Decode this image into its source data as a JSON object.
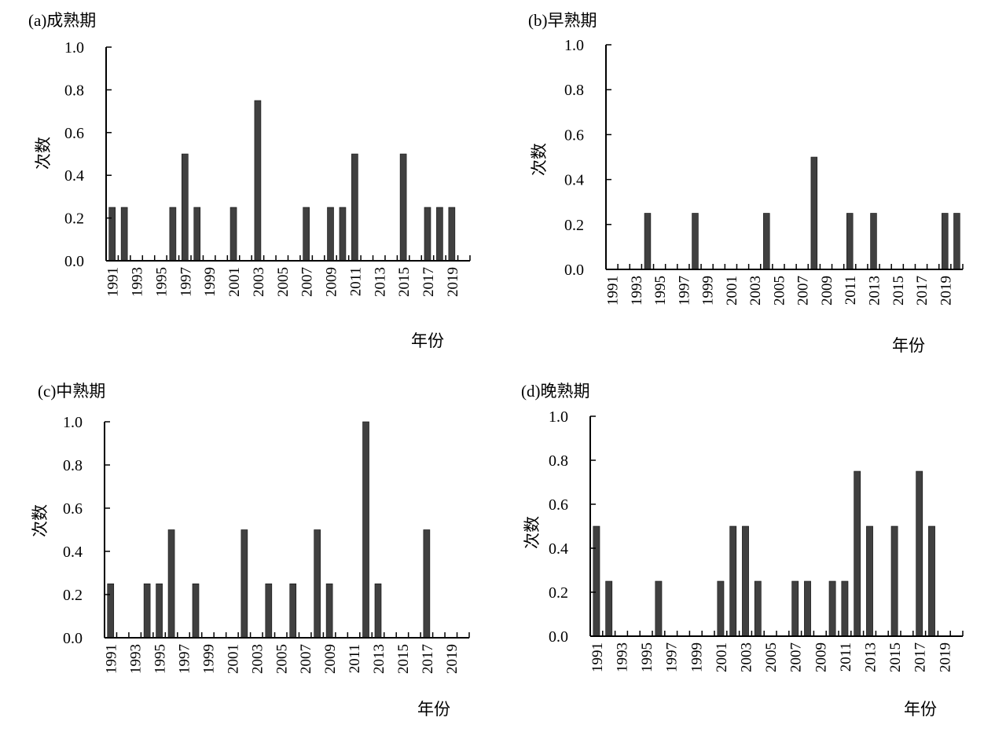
{
  "chart_data": [
    {
      "type": "bar",
      "title": "(a)成熟期",
      "xlabel": "年份",
      "ylabel": "次数",
      "ylim": [
        0,
        1.0
      ],
      "yticks": [
        "0.0",
        "0.2",
        "0.4",
        "0.6",
        "0.8",
        "1.0"
      ],
      "x": [
        1991,
        1992,
        1993,
        1994,
        1995,
        1996,
        1997,
        1998,
        1999,
        2000,
        2001,
        2002,
        2003,
        2004,
        2005,
        2006,
        2007,
        2008,
        2009,
        2010,
        2011,
        2012,
        2013,
        2014,
        2015,
        2016,
        2017,
        2018,
        2019,
        2020
      ],
      "xtick_labels": [
        "1991",
        "1993",
        "1995",
        "1997",
        "1999",
        "2001",
        "2003",
        "2005",
        "2007",
        "2009",
        "2011",
        "2013",
        "2015",
        "2017",
        "2019"
      ],
      "values": [
        0.25,
        0.25,
        0,
        0,
        0,
        0.25,
        0.5,
        0.25,
        0,
        0,
        0.25,
        0,
        0.75,
        0,
        0,
        0,
        0.25,
        0,
        0.25,
        0.25,
        0.5,
        0,
        0,
        0,
        0.5,
        0,
        0.25,
        0.25,
        0.25,
        0
      ],
      "grid": false,
      "color": "#404040"
    },
    {
      "type": "bar",
      "title": "(b)早熟期",
      "xlabel": "年份",
      "ylabel": "次数",
      "ylim": [
        0,
        1.0
      ],
      "yticks": [
        "0.0",
        "0.2",
        "0.4",
        "0.6",
        "0.8",
        "1.0"
      ],
      "x": [
        1991,
        1992,
        1993,
        1994,
        1995,
        1996,
        1997,
        1998,
        1999,
        2000,
        2001,
        2002,
        2003,
        2004,
        2005,
        2006,
        2007,
        2008,
        2009,
        2010,
        2011,
        2012,
        2013,
        2014,
        2015,
        2016,
        2017,
        2018,
        2019,
        2020
      ],
      "xtick_labels": [
        "1991",
        "1993",
        "1995",
        "1997",
        "1999",
        "2001",
        "2003",
        "2005",
        "2007",
        "2009",
        "2011",
        "2013",
        "2015",
        "2017",
        "2019"
      ],
      "values": [
        0,
        0,
        0,
        0.25,
        0,
        0,
        0,
        0.25,
        0,
        0,
        0,
        0,
        0,
        0.25,
        0,
        0,
        0,
        0.5,
        0,
        0,
        0.25,
        0,
        0.25,
        0,
        0,
        0,
        0,
        0,
        0.25,
        0.25
      ],
      "grid": false,
      "color": "#404040"
    },
    {
      "type": "bar",
      "title": "(c)中熟期",
      "xlabel": "年份",
      "ylabel": "次数",
      "ylim": [
        0,
        1.0
      ],
      "yticks": [
        "0.0",
        "0.2",
        "0.4",
        "0.6",
        "0.8",
        "1.0"
      ],
      "x": [
        1991,
        1992,
        1993,
        1994,
        1995,
        1996,
        1997,
        1998,
        1999,
        2000,
        2001,
        2002,
        2003,
        2004,
        2005,
        2006,
        2007,
        2008,
        2009,
        2010,
        2011,
        2012,
        2013,
        2014,
        2015,
        2016,
        2017,
        2018,
        2019,
        2020
      ],
      "xtick_labels": [
        "1991",
        "1993",
        "1995",
        "1997",
        "1999",
        "2001",
        "2003",
        "2005",
        "2007",
        "2009",
        "2011",
        "2013",
        "2015",
        "2017",
        "2019"
      ],
      "values": [
        0.25,
        0,
        0,
        0.25,
        0.25,
        0.5,
        0,
        0.25,
        0,
        0,
        0,
        0.5,
        0,
        0.25,
        0,
        0.25,
        0,
        0.5,
        0.25,
        0,
        0,
        1.0,
        0.25,
        0,
        0,
        0,
        0.5,
        0,
        0,
        0
      ],
      "grid": false,
      "color": "#404040"
    },
    {
      "type": "bar",
      "title": "(d)晚熟期",
      "xlabel": "年份",
      "ylabel": "次数",
      "ylim": [
        0,
        1.0
      ],
      "yticks": [
        "0.0",
        "0.2",
        "0.4",
        "0.6",
        "0.8",
        "1.0"
      ],
      "x": [
        1991,
        1992,
        1993,
        1994,
        1995,
        1996,
        1997,
        1998,
        1999,
        2000,
        2001,
        2002,
        2003,
        2004,
        2005,
        2006,
        2007,
        2008,
        2009,
        2010,
        2011,
        2012,
        2013,
        2014,
        2015,
        2016,
        2017,
        2018,
        2019,
        2020
      ],
      "xtick_labels": [
        "1991",
        "1993",
        "1995",
        "1997",
        "1999",
        "2001",
        "2003",
        "2005",
        "2007",
        "2009",
        "2011",
        "2013",
        "2015",
        "2017",
        "2019"
      ],
      "values": [
        0.5,
        0.25,
        0,
        0,
        0,
        0.25,
        0,
        0,
        0,
        0,
        0.25,
        0.5,
        0.5,
        0.25,
        0,
        0,
        0.25,
        0.25,
        0,
        0.25,
        0.25,
        0.75,
        0.5,
        0,
        0.5,
        0,
        0.75,
        0.5,
        0,
        0
      ],
      "grid": false,
      "color": "#404040"
    }
  ]
}
